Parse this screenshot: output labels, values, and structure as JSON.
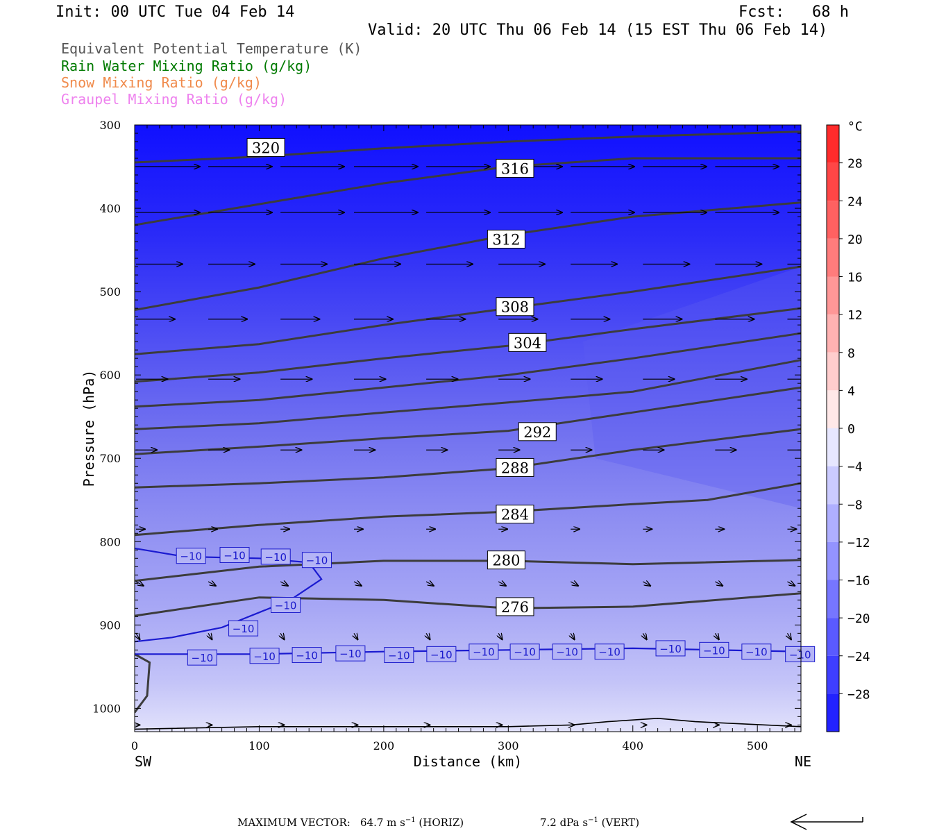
{
  "header": {
    "init": "Init: 00 UTC Tue 04 Feb 14",
    "fcst": "Fcst:   68 h",
    "valid": "Valid: 20 UTC Thu 06 Feb 14 (15 EST Thu 06 Feb 14)"
  },
  "legend": [
    {
      "label": "Equivalent Potential Temperature (K)",
      "color": "#555555"
    },
    {
      "label": "Rain Water Mixing Ratio (g/kg)",
      "color": "#007a00"
    },
    {
      "label": "Snow Mixing Ratio (g/kg)",
      "color": "#f08a4b"
    },
    {
      "label": "Graupel Mixing Ratio (g/kg)",
      "color": "#ee82ee"
    }
  ],
  "footer": {
    "max_vector_label": "MAXIMUM VECTOR:",
    "horiz_value": "64.7 m s",
    "horiz_tag": "(HORIZ)",
    "vert_value": "7.2 dPa s",
    "vert_tag": "(VERT)",
    "exp": "−1"
  },
  "chart_data": {
    "type": "contour",
    "xlabel": "Distance (km)",
    "ylabel": "Pressure (hPa)",
    "xlim": [
      0,
      535
    ],
    "ylim": [
      1028,
      300
    ],
    "x_ticks": [
      0,
      100,
      200,
      300,
      400,
      500
    ],
    "y_ticks": [
      300,
      400,
      500,
      600,
      700,
      800,
      900,
      1000
    ],
    "x_left_label": "SW",
    "x_right_label": "NE",
    "colorbar": {
      "unit": "°C",
      "tick_labels": [
        "28",
        "24",
        "20",
        "16",
        "12",
        "8",
        "4",
        "0",
        "−4",
        "−8",
        "−12",
        "−16",
        "−20",
        "−24",
        "−28"
      ],
      "tick_values": [
        28,
        24,
        20,
        16,
        12,
        8,
        4,
        0,
        -4,
        -8,
        -12,
        -16,
        -20,
        -24,
        -28
      ],
      "min": -32,
      "max": 32
    },
    "theta_e_contours": [
      {
        "level": "320",
        "points": [
          [
            0,
            345
          ],
          [
            100,
            338
          ],
          [
            200,
            328
          ],
          [
            300,
            320
          ],
          [
            400,
            314
          ],
          [
            535,
            308
          ]
        ]
      },
      {
        "level": "316",
        "points": [
          [
            0,
            420
          ],
          [
            100,
            395
          ],
          [
            200,
            370
          ],
          [
            300,
            350
          ],
          [
            400,
            340
          ],
          [
            535,
            340
          ]
        ]
      },
      {
        "level": "312",
        "points": [
          [
            0,
            522
          ],
          [
            100,
            495
          ],
          [
            200,
            460
          ],
          [
            300,
            432
          ],
          [
            400,
            410
          ],
          [
            535,
            393
          ]
        ]
      },
      {
        "level": "308",
        "points": [
          [
            0,
            575
          ],
          [
            100,
            563
          ],
          [
            200,
            540
          ],
          [
            300,
            520
          ],
          [
            400,
            500
          ],
          [
            535,
            470
          ]
        ]
      },
      {
        "level": "304",
        "points": [
          [
            0,
            608
          ],
          [
            100,
            597
          ],
          [
            200,
            580
          ],
          [
            300,
            565
          ],
          [
            400,
            545
          ],
          [
            535,
            520
          ]
        ]
      },
      {
        "level": "300",
        "points": [
          [
            0,
            638
          ],
          [
            100,
            630
          ],
          [
            200,
            615
          ],
          [
            300,
            600
          ],
          [
            400,
            580
          ],
          [
            535,
            550
          ]
        ]
      },
      {
        "level": "296",
        "points": [
          [
            0,
            665
          ],
          [
            100,
            658
          ],
          [
            200,
            645
          ],
          [
            300,
            633
          ],
          [
            400,
            620
          ],
          [
            535,
            582
          ]
        ]
      },
      {
        "level": "292",
        "points": [
          [
            0,
            695
          ],
          [
            100,
            686
          ],
          [
            200,
            676
          ],
          [
            300,
            667
          ],
          [
            400,
            645
          ],
          [
            535,
            615
          ]
        ]
      },
      {
        "level": "288",
        "points": [
          [
            0,
            735
          ],
          [
            100,
            730
          ],
          [
            200,
            723
          ],
          [
            300,
            712
          ],
          [
            400,
            690
          ],
          [
            535,
            665
          ]
        ]
      },
      {
        "level": "284",
        "points": [
          [
            0,
            792
          ],
          [
            100,
            780
          ],
          [
            200,
            770
          ],
          [
            300,
            764
          ],
          [
            400,
            755
          ],
          [
            460,
            750
          ],
          [
            535,
            730
          ]
        ]
      },
      {
        "level": "280",
        "points": [
          [
            0,
            847
          ],
          [
            100,
            830
          ],
          [
            200,
            823
          ],
          [
            300,
            823
          ],
          [
            400,
            827
          ],
          [
            535,
            822
          ]
        ]
      },
      {
        "level": "276",
        "points": [
          [
            0,
            889
          ],
          [
            100,
            867
          ],
          [
            200,
            870
          ],
          [
            300,
            880
          ],
          [
            400,
            878
          ],
          [
            535,
            862
          ]
        ]
      }
    ],
    "theta_e_labels": [
      {
        "text": "320",
        "x": 92,
        "p": 327
      },
      {
        "text": "316",
        "x": 292,
        "p": 352
      },
      {
        "text": "312",
        "x": 285,
        "p": 437
      },
      {
        "text": "308",
        "x": 292,
        "p": 518
      },
      {
        "text": "304",
        "x": 302,
        "p": 561
      },
      {
        "text": "292",
        "x": 310,
        "p": 668
      },
      {
        "text": "288",
        "x": 292,
        "p": 711
      },
      {
        "text": "284",
        "x": 292,
        "p": 767
      },
      {
        "text": "280",
        "x": 285,
        "p": 822
      },
      {
        "text": "276",
        "x": 292,
        "p": 878
      }
    ],
    "isotherm": {
      "level": "−10",
      "upper_line": [
        [
          0,
          808
        ],
        [
          40,
          818
        ],
        [
          100,
          820
        ],
        [
          140,
          825
        ],
        [
          150,
          845
        ],
        [
          125,
          870
        ],
        [
          100,
          885
        ],
        [
          70,
          903
        ],
        [
          30,
          915
        ],
        [
          0,
          920
        ]
      ],
      "lower_line": [
        [
          0,
          935
        ],
        [
          100,
          935
        ],
        [
          200,
          932
        ],
        [
          300,
          930
        ],
        [
          400,
          928
        ],
        [
          535,
          932
        ]
      ],
      "labels": [
        {
          "x": 33,
          "p": 817
        },
        {
          "x": 68,
          "p": 816
        },
        {
          "x": 101,
          "p": 818
        },
        {
          "x": 134,
          "p": 822
        },
        {
          "x": 109,
          "p": 876
        },
        {
          "x": 75,
          "p": 904
        },
        {
          "x": 42,
          "p": 939
        },
        {
          "x": 92,
          "p": 937
        },
        {
          "x": 126,
          "p": 936
        },
        {
          "x": 161,
          "p": 934
        },
        {
          "x": 200,
          "p": 936
        },
        {
          "x": 234,
          "p": 935
        },
        {
          "x": 268,
          "p": 932
        },
        {
          "x": 301,
          "p": 932
        },
        {
          "x": 335,
          "p": 932
        },
        {
          "x": 369,
          "p": 932
        },
        {
          "x": 418,
          "p": 928
        },
        {
          "x": 453,
          "p": 930
        },
        {
          "x": 487,
          "p": 932
        },
        {
          "x": 522,
          "p": 935
        }
      ]
    },
    "surface_line": [
      [
        0,
        1025
      ],
      [
        100,
        1022
      ],
      [
        200,
        1022
      ],
      [
        300,
        1022
      ],
      [
        350,
        1020
      ],
      [
        380,
        1016
      ],
      [
        420,
        1012
      ],
      [
        450,
        1016
      ],
      [
        535,
        1022
      ]
    ],
    "wind_vectors": [
      {
        "p": 350,
        "xs": [
          0,
          58,
          116,
          175,
          233,
          291,
          349,
          407,
          465,
          523
        ],
        "u": 0.85,
        "w": 0
      },
      {
        "p": 405,
        "xs": [
          0,
          58,
          116,
          175,
          233,
          291,
          349,
          407,
          465,
          523
        ],
        "u": 0.85,
        "w": 0
      },
      {
        "p": 467,
        "xs": [
          0,
          58,
          116,
          175,
          233,
          291,
          349,
          407,
          465,
          523
        ],
        "u": 0.62,
        "w": 0
      },
      {
        "p": 533,
        "xs": [
          0,
          58,
          116,
          175,
          233,
          291,
          349,
          407,
          465,
          523
        ],
        "u": 0.52,
        "w": 0
      },
      {
        "p": 605,
        "xs": [
          0,
          58,
          116,
          175,
          233,
          291,
          349,
          407,
          465,
          523
        ],
        "u": 0.42,
        "w": 0
      },
      {
        "p": 690,
        "xs": [
          0,
          58,
          116,
          175,
          233,
          291,
          349,
          407,
          465,
          523
        ],
        "u": 0.28,
        "w": 0
      },
      {
        "p": 785,
        "xs": [
          0,
          58,
          116,
          175,
          233,
          291,
          349,
          407,
          465,
          523
        ],
        "u": 0.12,
        "w": 0
      },
      {
        "p": 848,
        "xs": [
          0,
          58,
          116,
          175,
          233,
          291,
          349,
          407,
          465,
          523
        ],
        "u": 0.1,
        "w": 0.1
      },
      {
        "p": 910,
        "xs": [
          0,
          58,
          116,
          175,
          233,
          291,
          349,
          407,
          465,
          523
        ],
        "u": 0.05,
        "w": 0.15
      },
      {
        "p": 1020,
        "xs": [
          0,
          58,
          116,
          175,
          233,
          291,
          349,
          407,
          465,
          523
        ],
        "u": 0.05,
        "w": 0
      }
    ]
  }
}
